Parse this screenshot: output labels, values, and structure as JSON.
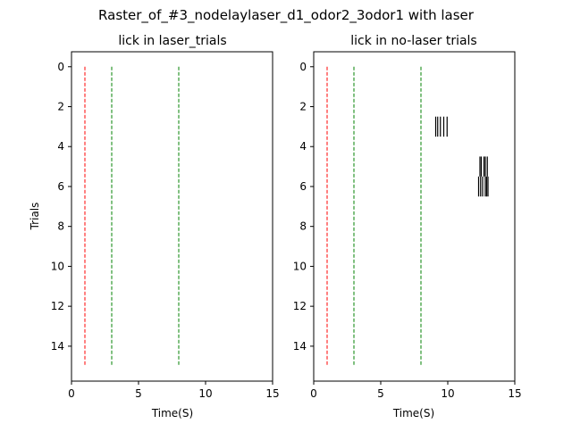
{
  "chart_data": {
    "suptitle": "Raster_of_#3_nodelaylaser_d1_odor2_3odor1 with laser",
    "panels": [
      {
        "type": "raster",
        "title": "lick in laser_trials",
        "xlabel": "Time(S)",
        "ylabel": "Trials",
        "xlim": [
          0,
          15
        ],
        "ylim": [
          15.75,
          -0.75
        ],
        "xticks": [
          0,
          5,
          10,
          15
        ],
        "yticks": [
          0,
          2,
          4,
          6,
          8,
          10,
          12,
          14
        ],
        "trials": 16,
        "events": [],
        "vlines": [
          {
            "x": 1,
            "color": "#ff0000"
          },
          {
            "x": 3,
            "color": "#008000"
          },
          {
            "x": 8,
            "color": "#008000"
          }
        ]
      },
      {
        "type": "raster",
        "title": "lick in no-laser trials",
        "xlabel": "Time(S)",
        "ylabel": "",
        "xlim": [
          0,
          15
        ],
        "ylim": [
          15.75,
          -0.75
        ],
        "xticks": [
          0,
          5,
          10,
          15
        ],
        "yticks": [
          0,
          2,
          4,
          6,
          8,
          10,
          12,
          14
        ],
        "trials": 16,
        "events": [
          {
            "trial": 3,
            "times": [
              9.1,
              9.25,
              9.45,
              9.7,
              9.95
            ]
          },
          {
            "trial": 5,
            "times": [
              12.4,
              12.5,
              12.7,
              12.8,
              12.95
            ]
          },
          {
            "trial": 6,
            "times": [
              12.3,
              12.45,
              12.6,
              12.8,
              12.9,
              13.0
            ]
          }
        ],
        "vlines": [
          {
            "x": 1,
            "color": "#ff0000"
          },
          {
            "x": 3,
            "color": "#008000"
          },
          {
            "x": 8,
            "color": "#008000"
          }
        ]
      }
    ]
  }
}
